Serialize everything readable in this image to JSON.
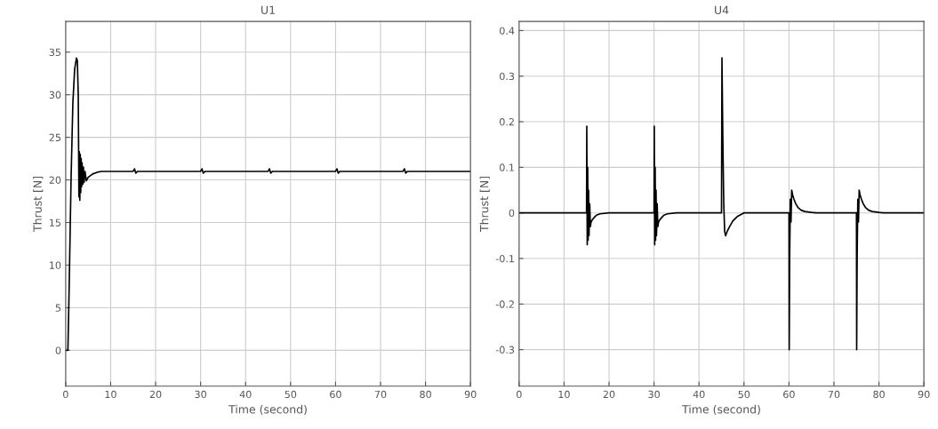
{
  "chart_data": [
    {
      "type": "line",
      "title": "U1",
      "xlabel": "Time (second)",
      "ylabel": "Thrust [N]",
      "xlim": [
        0,
        90
      ],
      "xticks": [
        0,
        10,
        20,
        30,
        40,
        50,
        60,
        70,
        80,
        90
      ],
      "ylim": [
        -4.2,
        38.6
      ],
      "yticks": [
        0,
        5,
        10,
        15,
        20,
        25,
        30,
        35
      ],
      "grid": true,
      "legend": false,
      "series": [
        {
          "color": "#000000",
          "x": [
            0,
            0.5,
            0.8,
            1.2,
            1.6,
            2.0,
            2.4,
            2.6,
            2.8,
            2.95,
            3.05,
            3.15,
            3.25,
            3.35,
            3.45,
            3.55,
            3.65,
            3.8,
            3.95,
            4.1,
            4.3,
            4.6,
            5,
            6,
            7,
            8,
            10,
            15,
            15.3,
            15.6,
            16,
            30,
            30.3,
            30.6,
            31,
            45,
            45.3,
            45.6,
            46,
            60,
            60.3,
            60.6,
            61,
            75,
            75.3,
            75.6,
            76,
            90
          ],
          "values": [
            0,
            0,
            8,
            20,
            29,
            33,
            34.3,
            34,
            30,
            18,
            23.3,
            17.6,
            23,
            18.5,
            22.5,
            19.2,
            22,
            19.5,
            21.5,
            19.7,
            21,
            19.9,
            20.3,
            20.7,
            20.9,
            21,
            21,
            21,
            21.3,
            20.8,
            21,
            21,
            21.3,
            20.8,
            21,
            21,
            21.3,
            20.8,
            21,
            21,
            21.3,
            20.8,
            21,
            21,
            21.3,
            20.8,
            21,
            21
          ]
        }
      ]
    },
    {
      "type": "line",
      "title": "U4",
      "xlabel": "Time (second)",
      "ylabel": "Thrust [N]",
      "xlim": [
        0,
        90
      ],
      "xticks": [
        0,
        10,
        20,
        30,
        40,
        50,
        60,
        70,
        80,
        90
      ],
      "ylim": [
        -0.38,
        0.42
      ],
      "yticks": [
        -0.3,
        -0.2,
        -0.1,
        0,
        0.1,
        0.2,
        0.3,
        0.4
      ],
      "grid": true,
      "legend": false,
      "series": [
        {
          "color": "#000000",
          "x": [
            0,
            15,
            15.05,
            15.15,
            15.25,
            15.35,
            15.45,
            15.55,
            15.7,
            15.85,
            16.0,
            16.3,
            16.7,
            17.2,
            18,
            20,
            30,
            30.05,
            30.15,
            30.25,
            30.35,
            30.45,
            30.55,
            30.7,
            30.85,
            31.0,
            31.3,
            31.7,
            32.2,
            33,
            35,
            45,
            45.1,
            45.3,
            45.5,
            45.7,
            45.9,
            46.3,
            46.8,
            47.5,
            48.5,
            50,
            60,
            60.05,
            60.15,
            60.3,
            60.45,
            60.6,
            60.8,
            61.1,
            61.5,
            62,
            62.7,
            63.5,
            65,
            66,
            75,
            75.05,
            75.15,
            75.3,
            75.45,
            75.6,
            75.8,
            76.1,
            76.5,
            77,
            77.7,
            78.5,
            80,
            81,
            90
          ],
          "values": [
            0,
            0,
            0.19,
            -0.07,
            0.1,
            -0.06,
            0.05,
            -0.05,
            0.02,
            -0.03,
            -0.02,
            -0.015,
            -0.01,
            -0.005,
            -0.002,
            0,
            0,
            0.19,
            -0.07,
            0.1,
            -0.06,
            0.05,
            -0.05,
            0.02,
            -0.03,
            -0.02,
            -0.015,
            -0.01,
            -0.005,
            -0.002,
            0,
            0,
            0.34,
            0.16,
            0.02,
            -0.04,
            -0.05,
            -0.04,
            -0.03,
            -0.018,
            -0.008,
            0,
            0,
            -0.3,
            -0.1,
            0.03,
            -0.02,
            0.05,
            0.04,
            0.03,
            0.02,
            0.012,
            0.006,
            0.003,
            0.001,
            0,
            0,
            -0.3,
            -0.1,
            0.03,
            -0.02,
            0.05,
            0.04,
            0.03,
            0.02,
            0.012,
            0.006,
            0.003,
            0.001,
            0,
            0
          ]
        }
      ]
    }
  ]
}
